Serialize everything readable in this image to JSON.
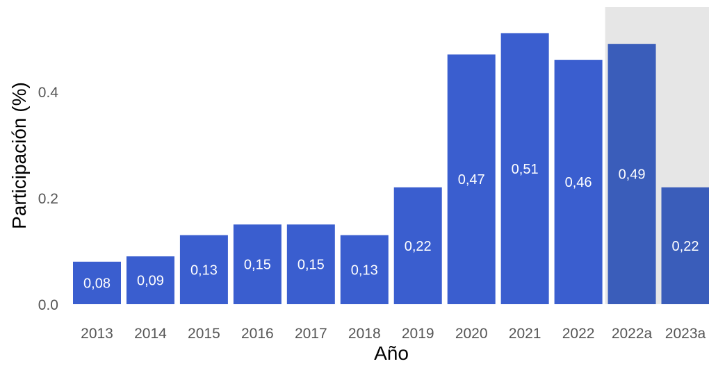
{
  "chart_data": {
    "type": "bar",
    "xlabel": "Año",
    "ylabel": "Participación (%)",
    "ylim": [
      0,
      0.56
    ],
    "y_ticks": [
      "0.0",
      "0.2",
      "0.4"
    ],
    "y_tick_values": [
      0,
      0.2,
      0.4
    ],
    "categories": [
      "2013",
      "2014",
      "2015",
      "2016",
      "2017",
      "2018",
      "2019",
      "2020",
      "2021",
      "2022",
      "2022a",
      "2023a"
    ],
    "values": [
      0.08,
      0.09,
      0.13,
      0.15,
      0.15,
      0.13,
      0.22,
      0.47,
      0.51,
      0.46,
      0.49,
      0.22
    ],
    "value_labels": [
      "0,08",
      "0,09",
      "0,13",
      "0,15",
      "0,15",
      "0,13",
      "0,22",
      "0,47",
      "0,51",
      "0,46",
      "0,49",
      "0,22"
    ],
    "highlight_categories": [
      "2022a",
      "2023a"
    ],
    "grid": false,
    "legend": "none"
  },
  "colors": {
    "bar": "#3a5ecf",
    "bar_highlight": "#3a5dba",
    "highlight_band": "#e6e6e6",
    "tick_text": "#555555",
    "title_text": "#000000",
    "label_text": "#ffffff"
  }
}
